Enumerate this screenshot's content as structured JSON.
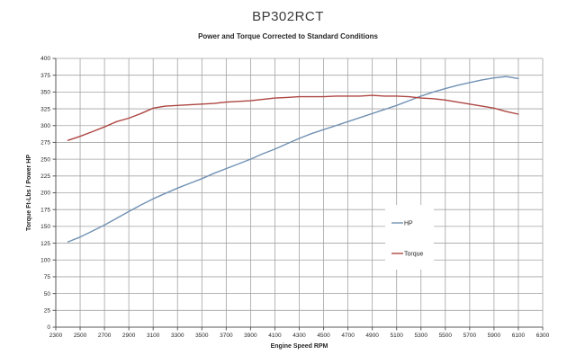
{
  "title": "BP302RCT",
  "subtitle": "Power and Torque Corrected to Standard Conditions",
  "colors": {
    "hp_line": "#7191b4",
    "torque_line": "#ad4642",
    "gridline": "#a3a3a3",
    "axis_line": "#595959",
    "text": "#262626",
    "background": "#ffffff"
  },
  "chart_data": {
    "type": "line",
    "title": "BP302RCT",
    "subtitle": "Power and Torque Corrected to Standard Conditions",
    "xlabel": "Engine Speed RPM",
    "ylabel": "Torque Ft-Lbs / Power HP",
    "xlim": [
      2300,
      6300
    ],
    "ylim": [
      0,
      400
    ],
    "x_tick_step": 200,
    "y_tick_step": 25,
    "grid": true,
    "legend_position": "inside-right",
    "x": [
      2400,
      2500,
      2600,
      2700,
      2800,
      2900,
      3000,
      3100,
      3200,
      3300,
      3400,
      3500,
      3600,
      3700,
      3800,
      3900,
      4000,
      4100,
      4200,
      4300,
      4400,
      4500,
      4600,
      4700,
      4800,
      4900,
      5000,
      5100,
      5200,
      5300,
      5400,
      5500,
      5600,
      5700,
      5800,
      5900,
      6000,
      6100
    ],
    "series": [
      {
        "name": "HP",
        "color": "#7191b4",
        "values": [
          127,
          134,
          143,
          152,
          162,
          172,
          182,
          191,
          199,
          207,
          214,
          221,
          229,
          236,
          243,
          250,
          258,
          265,
          273,
          281,
          288,
          294,
          300,
          306,
          312,
          318,
          324,
          330,
          337,
          344,
          350,
          355,
          360,
          364,
          368,
          371,
          373,
          370
        ]
      },
      {
        "name": "Torque",
        "color": "#ad4642",
        "values": [
          278,
          284,
          291,
          298,
          306,
          311,
          318,
          326,
          329,
          330,
          331,
          332,
          333,
          335,
          336,
          337,
          339,
          341,
          342,
          343,
          343,
          343,
          344,
          344,
          344,
          345,
          344,
          344,
          343,
          341,
          340,
          338,
          335,
          332,
          329,
          326,
          321,
          317
        ]
      }
    ]
  }
}
